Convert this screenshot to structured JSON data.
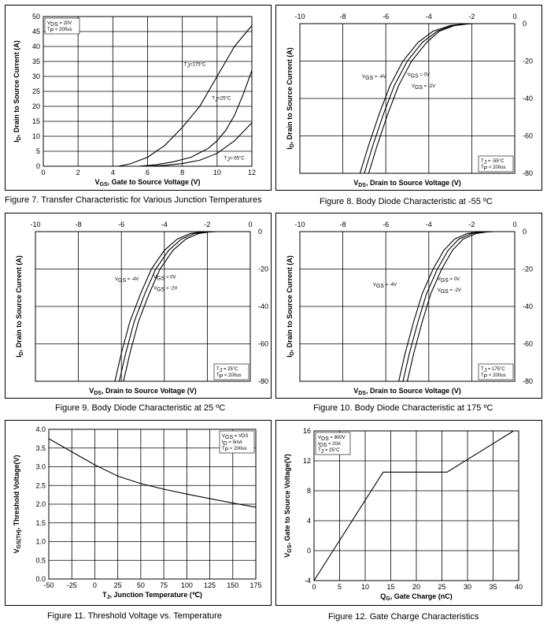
{
  "captions": {
    "fig7": "Figure 7. Transfer Characteristic for Various Junction Temperatures",
    "fig8": "Figure 8. Body Diode Characteristic at -55 ºC",
    "fig9": "Figure 9. Body Diode Characteristic at 25 ºC",
    "fig10": "Figure 10. Body Diode Characteristic at 175 ºC",
    "fig11": "Figure 11. Threshold Voltage vs. Temperature",
    "fig12": "Figure 12. Gate Charge Characteristics"
  },
  "chart_data": [
    {
      "id": "fig7",
      "type": "line",
      "xlabel": "VGS, Gate to Source Voltage (V)",
      "ylabel": "ID, Drain to Source Current (A)",
      "xlim": [
        0,
        12
      ],
      "ylim": [
        0,
        50
      ],
      "xticks": [
        0,
        2,
        4,
        6,
        8,
        10,
        12
      ],
      "yticks": [
        0,
        5,
        10,
        15,
        20,
        25,
        30,
        35,
        40,
        45,
        50
      ],
      "legend_box": [
        "VDS = 20V",
        "TP < 200us"
      ],
      "grid": true,
      "series": [
        {
          "name": "TJ=175°C",
          "x": [
            4.3,
            5.0,
            6.0,
            7.0,
            8.0,
            8.5,
            9.0,
            10.0,
            11.0,
            12.0
          ],
          "y": [
            0,
            0.8,
            3.0,
            7.0,
            13.0,
            16.5,
            20.0,
            30.0,
            40.0,
            47.0
          ]
        },
        {
          "name": "TJ=25°C",
          "x": [
            5.5,
            6.5,
            7.5,
            8.5,
            9.5,
            10.0,
            10.5,
            11.0,
            11.5,
            12.0
          ],
          "y": [
            0,
            0.5,
            1.5,
            3.0,
            6.0,
            8.5,
            12.0,
            17.0,
            24.0,
            32.0
          ]
        },
        {
          "name": "TJ=-55°C",
          "x": [
            6.0,
            7.0,
            8.0,
            9.0,
            10.0,
            11.0,
            12.0
          ],
          "y": [
            0,
            0.3,
            0.9,
            2.0,
            4.3,
            8.5,
            14.5
          ]
        }
      ]
    },
    {
      "id": "fig8",
      "type": "line",
      "xlabel": "VDS, Drain to Source Voltage (V)",
      "ylabel": "ID, Drain to Source Current (A)",
      "xlim": [
        -10,
        0
      ],
      "ylim": [
        -80,
        0
      ],
      "xticks": [
        -10,
        -8,
        -6,
        -4,
        -2,
        0
      ],
      "yticks": [
        0,
        -20,
        -40,
        -60,
        -80
      ],
      "legend_box": [
        "TJ = -55°C",
        "TP < 200us"
      ],
      "grid": true,
      "series": [
        {
          "name": "VGS = -4V",
          "x": [
            -7.2,
            -6.8,
            -6.3,
            -5.8,
            -5.2,
            -4.5,
            -3.8,
            -3.0,
            -2.4,
            -2.0
          ],
          "y": [
            -80,
            -65,
            -48,
            -33,
            -20,
            -10,
            -4,
            -1,
            -0.2,
            0
          ]
        },
        {
          "name": "VGS = 0V",
          "x": [
            -7.0,
            -6.6,
            -6.1,
            -5.6,
            -5.0,
            -4.3,
            -3.6,
            -2.9,
            -2.3,
            -2.0
          ],
          "y": [
            -80,
            -65,
            -48,
            -33,
            -20,
            -10,
            -4,
            -1,
            -0.2,
            0
          ]
        },
        {
          "name": "VGS = -2V",
          "x": [
            -6.8,
            -6.4,
            -5.9,
            -5.4,
            -4.8,
            -4.1,
            -3.5,
            -2.8,
            -2.2,
            -2.0
          ],
          "y": [
            -80,
            -65,
            -48,
            -33,
            -20,
            -10,
            -4,
            -1,
            -0.2,
            0
          ]
        }
      ]
    },
    {
      "id": "fig9",
      "type": "line",
      "xlabel": "VDS, Drain to Source Voltage (V)",
      "ylabel": "ID, Drain to Source Current (A)",
      "xlim": [
        -10,
        0
      ],
      "ylim": [
        -80,
        0
      ],
      "xticks": [
        -10,
        -8,
        -6,
        -4,
        -2,
        0
      ],
      "yticks": [
        0,
        -20,
        -40,
        -60,
        -80
      ],
      "legend_box": [
        "TJ = 25°C",
        "TP < 200us"
      ],
      "grid": true,
      "series": [
        {
          "name": "VGS = -4V",
          "x": [
            -6.3,
            -6.0,
            -5.6,
            -5.1,
            -4.6,
            -4.0,
            -3.4,
            -2.8,
            -2.3,
            -1.8
          ],
          "y": [
            -80,
            -65,
            -48,
            -33,
            -20,
            -10,
            -4,
            -1,
            -0.2,
            0
          ]
        },
        {
          "name": "VGS = 0V",
          "x": [
            -6.1,
            -5.8,
            -5.4,
            -4.9,
            -4.4,
            -3.8,
            -3.2,
            -2.6,
            -2.1,
            -1.7
          ],
          "y": [
            -80,
            -65,
            -48,
            -33,
            -20,
            -10,
            -4,
            -1,
            -0.2,
            0
          ]
        },
        {
          "name": "VGS = -2V",
          "x": [
            -5.9,
            -5.6,
            -5.2,
            -4.7,
            -4.2,
            -3.6,
            -3.0,
            -2.4,
            -1.9,
            -1.5
          ],
          "y": [
            -80,
            -65,
            -48,
            -33,
            -20,
            -10,
            -4,
            -1,
            -0.2,
            0
          ]
        }
      ]
    },
    {
      "id": "fig10",
      "type": "line",
      "xlabel": "VDS, Drain to Source Voltage (V)",
      "ylabel": "ID, Drain to Source Current (A)",
      "xlim": [
        -10,
        0
      ],
      "ylim": [
        -80,
        0
      ],
      "xticks": [
        -10,
        -8,
        -6,
        -4,
        -2,
        0
      ],
      "yticks": [
        0,
        -20,
        -40,
        -60,
        -80
      ],
      "legend_box": [
        "TJ = 175°C",
        "TP < 200us"
      ],
      "grid": true,
      "series": [
        {
          "name": "VGS = -4V",
          "x": [
            -5.4,
            -5.1,
            -4.7,
            -4.3,
            -3.8,
            -3.3,
            -2.8,
            -2.2,
            -1.7,
            -1.2
          ],
          "y": [
            -80,
            -65,
            -48,
            -33,
            -20,
            -10,
            -4,
            -1,
            -0.2,
            0
          ]
        },
        {
          "name": "VGS = 0V",
          "x": [
            -5.2,
            -4.9,
            -4.5,
            -4.1,
            -3.6,
            -3.1,
            -2.6,
            -2.0,
            -1.5,
            -1.1
          ],
          "y": [
            -80,
            -65,
            -48,
            -33,
            -20,
            -10,
            -4,
            -1,
            -0.2,
            0
          ]
        },
        {
          "name": "VGS = -2V",
          "x": [
            -5.0,
            -4.7,
            -4.3,
            -3.9,
            -3.4,
            -2.9,
            -2.4,
            -1.8,
            -1.3,
            -0.9
          ],
          "y": [
            -80,
            -65,
            -48,
            -33,
            -20,
            -10,
            -4,
            -1,
            -0.2,
            0
          ]
        }
      ]
    },
    {
      "id": "fig11",
      "type": "line",
      "xlabel": "TJ, Junction Temperature (℃)",
      "ylabel": "VGS(TH), Threshold Voltage(V)",
      "xlim": [
        -50,
        175
      ],
      "ylim": [
        0,
        4
      ],
      "xticks": [
        -50,
        -25,
        0,
        25,
        50,
        75,
        100,
        125,
        150,
        175
      ],
      "yticks": [
        0.0,
        0.5,
        1.0,
        1.5,
        2.0,
        2.5,
        3.0,
        3.5,
        4.0
      ],
      "legend_box": [
        "VGS = VDS",
        "ID = 5mA",
        "TP < 200us"
      ],
      "grid": true,
      "series": [
        {
          "name": "VGS(TH)",
          "x": [
            -50,
            -25,
            0,
            25,
            50,
            75,
            100,
            125,
            150,
            175
          ],
          "y": [
            3.75,
            3.4,
            3.05,
            2.75,
            2.55,
            2.4,
            2.27,
            2.15,
            2.03,
            1.92
          ]
        }
      ]
    },
    {
      "id": "fig12",
      "type": "line",
      "xlabel": "QG, Gate Charge (nC)",
      "ylabel": "VGS, Gate to Source Voltage(V)",
      "xlim": [
        0,
        40
      ],
      "ylim": [
        -4,
        16
      ],
      "xticks": [
        0,
        5,
        10,
        15,
        20,
        25,
        30,
        35,
        40
      ],
      "yticks": [
        -4,
        0,
        4,
        8,
        12,
        16
      ],
      "legend_box": [
        "VDS = 800V",
        "IDS = 20A",
        "TJ = 25°C"
      ],
      "grid": true,
      "series": [
        {
          "name": "VGS",
          "x": [
            0,
            13.5,
            26,
            39
          ],
          "y": [
            -4,
            10.5,
            10.5,
            16
          ]
        }
      ]
    }
  ]
}
